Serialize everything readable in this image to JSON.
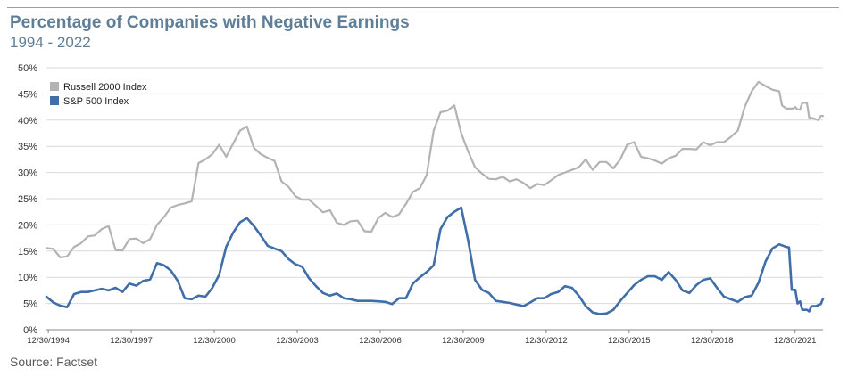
{
  "header": {
    "title": "Percentage of Companies with Negative Earnings",
    "subtitle": "1994 - 2022"
  },
  "footer": {
    "source": "Source: Factset"
  },
  "chart_data": {
    "type": "line",
    "xlim": [
      1994.92,
      2022.25
    ],
    "ylim": [
      0,
      50
    ],
    "grid": true,
    "legend": "top-left",
    "y_ticks": [
      "0%",
      "5%",
      "10%",
      "15%",
      "20%",
      "25%",
      "30%",
      "35%",
      "40%",
      "45%",
      "50%"
    ],
    "x_ticks": [
      {
        "label": "12/30/1994",
        "x": 1994.99
      },
      {
        "label": "12/30/1997",
        "x": 1997.99
      },
      {
        "label": "12/30/2000",
        "x": 2000.99
      },
      {
        "label": "12/30/2003",
        "x": 2003.99
      },
      {
        "label": "12/30/2006",
        "x": 2006.99
      },
      {
        "label": "12/30/2009",
        "x": 2009.99
      },
      {
        "label": "12/30/2012",
        "x": 2012.99
      },
      {
        "label": "12/30/2015",
        "x": 2015.99
      },
      {
        "label": "12/30/2018",
        "x": 2018.99
      },
      {
        "label": "12/30/2021",
        "x": 2021.99
      }
    ],
    "series": [
      {
        "name": "Russell 2000 Index",
        "color": "#b3b3b3",
        "points": [
          [
            1994.92,
            15.6
          ],
          [
            1995.17,
            15.4
          ],
          [
            1995.42,
            13.8
          ],
          [
            1995.67,
            14.0
          ],
          [
            1995.92,
            15.8
          ],
          [
            1996.17,
            16.5
          ],
          [
            1996.42,
            17.8
          ],
          [
            1996.67,
            18.0
          ],
          [
            1996.92,
            19.2
          ],
          [
            1997.17,
            19.8
          ],
          [
            1997.42,
            15.2
          ],
          [
            1997.67,
            15.1
          ],
          [
            1997.92,
            17.3
          ],
          [
            1998.17,
            17.4
          ],
          [
            1998.42,
            16.5
          ],
          [
            1998.67,
            17.3
          ],
          [
            1998.92,
            20.0
          ],
          [
            1999.17,
            21.5
          ],
          [
            1999.42,
            23.3
          ],
          [
            1999.67,
            23.8
          ],
          [
            1999.92,
            24.1
          ],
          [
            2000.17,
            24.5
          ],
          [
            2000.42,
            31.8
          ],
          [
            2000.67,
            32.5
          ],
          [
            2000.92,
            33.5
          ],
          [
            2001.17,
            35.3
          ],
          [
            2001.42,
            33.0
          ],
          [
            2001.67,
            35.5
          ],
          [
            2001.92,
            38.0
          ],
          [
            2002.17,
            38.8
          ],
          [
            2002.42,
            34.7
          ],
          [
            2002.67,
            33.5
          ],
          [
            2002.92,
            32.8
          ],
          [
            2003.17,
            32.2
          ],
          [
            2003.42,
            28.3
          ],
          [
            2003.67,
            27.3
          ],
          [
            2003.92,
            25.5
          ],
          [
            2004.17,
            24.8
          ],
          [
            2004.42,
            24.8
          ],
          [
            2004.67,
            23.6
          ],
          [
            2004.92,
            22.4
          ],
          [
            2005.17,
            22.8
          ],
          [
            2005.42,
            20.4
          ],
          [
            2005.67,
            20.0
          ],
          [
            2005.92,
            20.7
          ],
          [
            2006.17,
            20.8
          ],
          [
            2006.42,
            18.8
          ],
          [
            2006.67,
            18.7
          ],
          [
            2006.92,
            21.3
          ],
          [
            2007.17,
            22.3
          ],
          [
            2007.42,
            21.5
          ],
          [
            2007.67,
            22.0
          ],
          [
            2007.92,
            24.0
          ],
          [
            2008.17,
            26.3
          ],
          [
            2008.42,
            27.0
          ],
          [
            2008.67,
            29.5
          ],
          [
            2008.92,
            38.0
          ],
          [
            2009.17,
            41.5
          ],
          [
            2009.42,
            41.8
          ],
          [
            2009.67,
            42.8
          ],
          [
            2009.92,
            37.5
          ],
          [
            2010.17,
            34.0
          ],
          [
            2010.42,
            31.0
          ],
          [
            2010.67,
            29.8
          ],
          [
            2010.92,
            28.8
          ],
          [
            2011.17,
            28.7
          ],
          [
            2011.42,
            29.2
          ],
          [
            2011.67,
            28.3
          ],
          [
            2011.92,
            28.7
          ],
          [
            2012.17,
            28.0
          ],
          [
            2012.42,
            27.0
          ],
          [
            2012.67,
            27.8
          ],
          [
            2012.92,
            27.6
          ],
          [
            2013.17,
            28.5
          ],
          [
            2013.42,
            29.5
          ],
          [
            2013.67,
            30.0
          ],
          [
            2013.92,
            30.5
          ],
          [
            2014.17,
            31.0
          ],
          [
            2014.42,
            32.5
          ],
          [
            2014.67,
            30.5
          ],
          [
            2014.92,
            32.0
          ],
          [
            2015.17,
            32.0
          ],
          [
            2015.42,
            30.8
          ],
          [
            2015.67,
            32.5
          ],
          [
            2015.92,
            35.3
          ],
          [
            2016.17,
            35.8
          ],
          [
            2016.42,
            33.0
          ],
          [
            2016.67,
            32.7
          ],
          [
            2016.92,
            32.3
          ],
          [
            2017.17,
            31.7
          ],
          [
            2017.42,
            32.7
          ],
          [
            2017.67,
            33.2
          ],
          [
            2017.92,
            34.5
          ],
          [
            2018.17,
            34.5
          ],
          [
            2018.42,
            34.4
          ],
          [
            2018.67,
            35.8
          ],
          [
            2018.92,
            35.2
          ],
          [
            2019.17,
            35.8
          ],
          [
            2019.42,
            35.8
          ],
          [
            2019.67,
            36.8
          ],
          [
            2019.92,
            38.0
          ],
          [
            2020.17,
            42.5
          ],
          [
            2020.42,
            45.5
          ],
          [
            2020.67,
            47.3
          ],
          [
            2020.92,
            46.5
          ],
          [
            2021.17,
            45.8
          ],
          [
            2021.42,
            45.5
          ],
          [
            2021.52,
            42.8
          ],
          [
            2021.67,
            42.2
          ],
          [
            2021.92,
            42.2
          ],
          [
            2022.0,
            42.5
          ],
          [
            2022.08,
            42.0
          ],
          [
            2022.17,
            42.0
          ],
          [
            2022.25,
            43.3
          ],
          [
            2022.42,
            43.3
          ],
          [
            2022.5,
            40.5
          ],
          [
            2022.67,
            40.3
          ],
          [
            2022.83,
            40.0
          ],
          [
            2022.92,
            40.8
          ],
          [
            2023.0,
            40.8
          ]
        ]
      },
      {
        "name": "S&P 500 Index",
        "color": "#3f6ea8",
        "points": [
          [
            1994.92,
            6.3
          ],
          [
            1995.17,
            5.2
          ],
          [
            1995.42,
            4.6
          ],
          [
            1995.67,
            4.3
          ],
          [
            1995.92,
            6.8
          ],
          [
            1996.17,
            7.2
          ],
          [
            1996.42,
            7.2
          ],
          [
            1996.67,
            7.5
          ],
          [
            1996.92,
            7.8
          ],
          [
            1997.17,
            7.5
          ],
          [
            1997.42,
            8.0
          ],
          [
            1997.67,
            7.2
          ],
          [
            1997.92,
            8.8
          ],
          [
            1998.17,
            8.4
          ],
          [
            1998.42,
            9.3
          ],
          [
            1998.67,
            9.6
          ],
          [
            1998.92,
            12.7
          ],
          [
            1999.17,
            12.3
          ],
          [
            1999.42,
            11.3
          ],
          [
            1999.67,
            9.3
          ],
          [
            1999.92,
            6.0
          ],
          [
            2000.17,
            5.8
          ],
          [
            2000.42,
            6.5
          ],
          [
            2000.67,
            6.3
          ],
          [
            2000.92,
            8.0
          ],
          [
            2001.17,
            10.5
          ],
          [
            2001.42,
            15.8
          ],
          [
            2001.67,
            18.5
          ],
          [
            2001.92,
            20.5
          ],
          [
            2002.17,
            21.3
          ],
          [
            2002.42,
            19.8
          ],
          [
            2002.67,
            18.0
          ],
          [
            2002.92,
            16.0
          ],
          [
            2003.17,
            15.5
          ],
          [
            2003.42,
            15.0
          ],
          [
            2003.67,
            13.5
          ],
          [
            2003.92,
            12.5
          ],
          [
            2004.17,
            12.0
          ],
          [
            2004.42,
            9.8
          ],
          [
            2004.67,
            8.3
          ],
          [
            2004.92,
            7.0
          ],
          [
            2005.17,
            6.5
          ],
          [
            2005.42,
            6.9
          ],
          [
            2005.67,
            6.0
          ],
          [
            2005.92,
            5.8
          ],
          [
            2006.17,
            5.5
          ],
          [
            2006.42,
            5.5
          ],
          [
            2006.67,
            5.5
          ],
          [
            2006.92,
            5.4
          ],
          [
            2007.17,
            5.3
          ],
          [
            2007.42,
            4.9
          ],
          [
            2007.67,
            6.0
          ],
          [
            2007.92,
            6.0
          ],
          [
            2008.17,
            8.8
          ],
          [
            2008.42,
            10.0
          ],
          [
            2008.67,
            11.0
          ],
          [
            2008.92,
            12.3
          ],
          [
            2009.17,
            19.2
          ],
          [
            2009.42,
            21.5
          ],
          [
            2009.67,
            22.5
          ],
          [
            2009.92,
            23.3
          ],
          [
            2010.17,
            17.0
          ],
          [
            2010.42,
            9.5
          ],
          [
            2010.67,
            7.6
          ],
          [
            2010.92,
            7.0
          ],
          [
            2011.17,
            5.5
          ],
          [
            2011.42,
            5.3
          ],
          [
            2011.67,
            5.1
          ],
          [
            2011.92,
            4.8
          ],
          [
            2012.17,
            4.5
          ],
          [
            2012.42,
            5.2
          ],
          [
            2012.67,
            6.0
          ],
          [
            2012.92,
            6.0
          ],
          [
            2013.17,
            6.8
          ],
          [
            2013.42,
            7.2
          ],
          [
            2013.67,
            8.3
          ],
          [
            2013.92,
            8.0
          ],
          [
            2014.17,
            6.5
          ],
          [
            2014.42,
            4.5
          ],
          [
            2014.67,
            3.3
          ],
          [
            2014.92,
            3.0
          ],
          [
            2015.17,
            3.1
          ],
          [
            2015.42,
            3.8
          ],
          [
            2015.67,
            5.5
          ],
          [
            2015.92,
            7.0
          ],
          [
            2016.17,
            8.5
          ],
          [
            2016.42,
            9.5
          ],
          [
            2016.67,
            10.2
          ],
          [
            2016.92,
            10.2
          ],
          [
            2017.17,
            9.5
          ],
          [
            2017.42,
            11.0
          ],
          [
            2017.67,
            9.5
          ],
          [
            2017.92,
            7.5
          ],
          [
            2018.17,
            7.0
          ],
          [
            2018.42,
            8.5
          ],
          [
            2018.67,
            9.5
          ],
          [
            2018.92,
            9.8
          ],
          [
            2019.17,
            8.0
          ],
          [
            2019.42,
            6.3
          ],
          [
            2019.67,
            5.8
          ],
          [
            2019.92,
            5.3
          ],
          [
            2020.17,
            6.2
          ],
          [
            2020.42,
            6.5
          ],
          [
            2020.67,
            9.0
          ],
          [
            2020.92,
            13.0
          ],
          [
            2021.17,
            15.5
          ],
          [
            2021.42,
            16.3
          ],
          [
            2021.67,
            15.8
          ],
          [
            2021.77,
            15.7
          ],
          [
            2021.87,
            7.6
          ],
          [
            2022.0,
            7.6
          ],
          [
            2022.08,
            5.0
          ],
          [
            2022.17,
            5.4
          ],
          [
            2022.25,
            3.8
          ],
          [
            2022.42,
            3.8
          ],
          [
            2022.5,
            3.5
          ],
          [
            2022.58,
            4.5
          ],
          [
            2022.75,
            4.5
          ],
          [
            2022.92,
            4.9
          ],
          [
            2023.0,
            5.9
          ]
        ]
      }
    ]
  }
}
